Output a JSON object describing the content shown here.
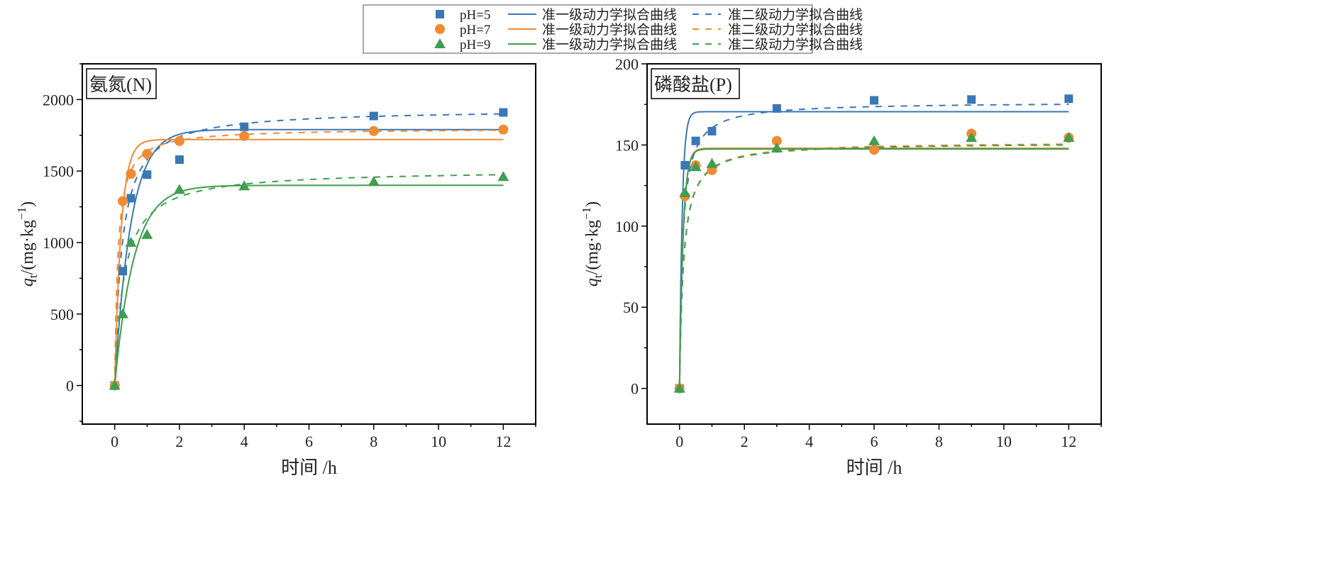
{
  "legend": {
    "series": [
      {
        "name": "pH=5",
        "pfo": "准一级动力学拟合曲线",
        "pso": "准二级动力学拟合曲线"
      },
      {
        "name": "pH=7",
        "pfo": "准一级动力学拟合曲线",
        "pso": "准二级动力学拟合曲线"
      },
      {
        "name": "pH=9",
        "pfo": "准一级动力学拟合曲线",
        "pso": "准二级动力学拟合曲线"
      }
    ]
  },
  "colors": {
    "pH=5": "#3a77b5",
    "pH=7": "#f08a33",
    "pH=9": "#3f9e4f"
  },
  "markers": {
    "pH=5": "square",
    "pH=7": "circle",
    "pH=9": "triangle"
  },
  "chart_data": [
    {
      "type": "scatter",
      "title": "氨氮(N)",
      "xlabel": "时间 /h",
      "ylabel": "qt/(mg·kg-1)",
      "ylabel_parts": {
        "q": "q",
        "sub": "t",
        "unit": "/(mg·kg",
        "sup": "−1",
        "close": ")"
      },
      "xlim": [
        -1,
        13
      ],
      "ylim": [
        -270,
        2250
      ],
      "xticks": [
        0,
        2,
        4,
        6,
        8,
        10,
        12
      ],
      "yticks": [
        0,
        500,
        1000,
        1500,
        2000
      ],
      "grid": false,
      "series": [
        {
          "name": "pH=5",
          "x": [
            0,
            0.25,
            0.5,
            1,
            2,
            4,
            8,
            12
          ],
          "y": [
            0,
            800,
            1310,
            1475,
            1580,
            1810,
            1885,
            1910
          ],
          "pfo": {
            "qe": 1790,
            "k1": 2.0
          },
          "pso": {
            "qe": 1935,
            "k2": 0.0023
          }
        },
        {
          "name": "pH=7",
          "x": [
            0,
            0.25,
            0.5,
            1,
            2,
            4,
            8,
            12
          ],
          "y": [
            0,
            1290,
            1480,
            1620,
            1710,
            1745,
            1780,
            1790
          ],
          "pfo": {
            "qe": 1720,
            "k1": 5.0
          },
          "pso": {
            "qe": 1800,
            "k2": 0.0056
          }
        },
        {
          "name": "pH=9",
          "x": [
            0,
            0.25,
            0.5,
            1,
            2,
            4,
            8,
            12
          ],
          "y": [
            0,
            500,
            1000,
            1055,
            1370,
            1395,
            1425,
            1460
          ],
          "pfo": {
            "qe": 1400,
            "k1": 1.7
          },
          "pso": {
            "qe": 1510,
            "k2": 0.0023
          }
        }
      ]
    },
    {
      "type": "scatter",
      "title": "磷酸盐(P)",
      "xlabel": "时间 /h",
      "ylabel": "qt/(mg·kg-1)",
      "ylabel_parts": {
        "q": "q",
        "sub": "t",
        "unit": "/(mg·kg",
        "sup": "−1",
        "close": ")"
      },
      "xlim": [
        -1,
        13
      ],
      "ylim": [
        -22,
        200
      ],
      "xticks": [
        0,
        2,
        4,
        6,
        8,
        10,
        12
      ],
      "yticks": [
        0,
        50,
        100,
        150,
        200
      ],
      "grid": false,
      "series": [
        {
          "name": "pH=5",
          "x": [
            0,
            0.167,
            0.5,
            1,
            3,
            6,
            9,
            12
          ],
          "y": [
            0,
            137.5,
            152.5,
            158.5,
            172.5,
            177.5,
            178,
            178.5
          ],
          "pfo": {
            "qe": 170.5,
            "k1": 12
          },
          "pso": {
            "qe": 176.5,
            "k2": 0.057
          }
        },
        {
          "name": "pH=7",
          "x": [
            0,
            0.167,
            0.5,
            1,
            3,
            6,
            9,
            12
          ],
          "y": [
            0,
            118.5,
            137.5,
            134.5,
            152.5,
            147,
            157,
            154.5
          ],
          "pfo": {
            "qe": 148,
            "k1": 9
          },
          "pso": {
            "qe": 152,
            "k2": 0.055
          }
        },
        {
          "name": "pH=9",
          "x": [
            0,
            0.167,
            0.5,
            1,
            3,
            6,
            9,
            12
          ],
          "y": [
            0,
            120.5,
            136.5,
            138.5,
            148,
            152.5,
            154.5,
            154.5
          ],
          "pfo": {
            "qe": 147.5,
            "k1": 9
          },
          "pso": {
            "qe": 151.5,
            "k2": 0.055
          }
        }
      ]
    }
  ]
}
